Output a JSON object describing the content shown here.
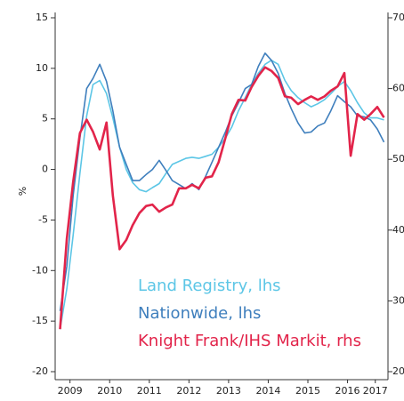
{
  "chart_data": {
    "type": "line",
    "y_label": "%",
    "x": [
      2009.25,
      2009.42,
      2009.58,
      2009.75,
      2009.92,
      2010.08,
      2010.25,
      2010.42,
      2010.58,
      2010.75,
      2010.92,
      2011.08,
      2011.25,
      2011.42,
      2011.58,
      2011.75,
      2011.92,
      2012.08,
      2012.25,
      2012.42,
      2012.58,
      2012.75,
      2012.92,
      2013.08,
      2013.25,
      2013.42,
      2013.58,
      2013.75,
      2013.92,
      2014.08,
      2014.25,
      2014.42,
      2014.58,
      2014.75,
      2014.92,
      2015.08,
      2015.25,
      2015.42,
      2015.58,
      2015.75,
      2015.92,
      2016.08,
      2016.25,
      2016.42,
      2016.58,
      2016.75,
      2016.92,
      2017.08,
      2017.25,
      2017.42
    ],
    "series": [
      {
        "name": "Land Registry, lhs",
        "color": "#5cc6e6",
        "values": [
          -15.8,
          -11.8,
          -6.5,
          -0.4,
          5.3,
          8.4,
          8.8,
          7.5,
          5.1,
          2.2,
          0.0,
          -1.3,
          -2.0,
          -2.2,
          -1.8,
          -1.4,
          -0.4,
          0.5,
          0.8,
          1.1,
          1.2,
          1.1,
          1.3,
          1.5,
          2.2,
          3.1,
          4.2,
          5.8,
          7.1,
          8.4,
          9.5,
          10.4,
          10.8,
          10.4,
          8.8,
          7.8,
          7.1,
          6.6,
          6.2,
          6.5,
          6.9,
          7.5,
          8.2,
          8.7,
          7.8,
          6.6,
          5.6,
          5.1,
          5.1,
          4.9
        ]
      },
      {
        "name": "Nationwide, lhs",
        "color": "#3f7fbd",
        "values": [
          -14.0,
          -9.6,
          -2.6,
          3.1,
          8.0,
          9.0,
          10.4,
          8.7,
          5.8,
          2.2,
          0.5,
          -1.1,
          -1.1,
          -0.5,
          0.0,
          0.9,
          -0.1,
          -1.1,
          -1.5,
          -1.9,
          -1.4,
          -2.0,
          -0.7,
          0.7,
          2.2,
          3.7,
          5.3,
          6.6,
          8.0,
          8.4,
          10.2,
          11.5,
          10.8,
          9.5,
          7.5,
          6.0,
          4.6,
          3.6,
          3.7,
          4.3,
          4.6,
          5.8,
          7.3,
          6.7,
          6.2,
          5.3,
          5.2,
          4.9,
          4.0,
          2.7
        ]
      },
      {
        "name": "Knight Frank/IHS Markit, rhs",
        "color": "#e2244a",
        "axis": "y2",
        "values": [
          26.0,
          38.8,
          46.8,
          53.7,
          55.6,
          53.9,
          51.4,
          55.2,
          44.9,
          37.3,
          38.6,
          40.7,
          42.4,
          43.4,
          43.6,
          42.6,
          43.2,
          43.6,
          45.9,
          45.9,
          46.4,
          45.9,
          47.4,
          47.6,
          49.6,
          53.0,
          56.4,
          58.4,
          58.3,
          60.2,
          61.8,
          63.0,
          62.5,
          61.5,
          58.9,
          58.7,
          57.8,
          58.4,
          58.9,
          58.4,
          58.9,
          59.7,
          60.3,
          62.2,
          50.5,
          56.4,
          55.6,
          56.4,
          57.4,
          55.9
        ]
      }
    ],
    "xlim": [
      2009.126,
      2017.52
    ],
    "xticks": [
      {
        "value": 2009.5,
        "label": "2009"
      },
      {
        "value": 2010.5,
        "label": "2010"
      },
      {
        "value": 2011.5,
        "label": "2011"
      },
      {
        "value": 2012.5,
        "label": "2012"
      },
      {
        "value": 2013.5,
        "label": "2013"
      },
      {
        "value": 2014.5,
        "label": "2014"
      },
      {
        "value": 2015.5,
        "label": "2015"
      },
      {
        "value": 2016.5,
        "label": "2016"
      },
      {
        "value": 2017.2,
        "label": "2017"
      }
    ],
    "ylim": [
      -20,
      15
    ],
    "yticks": [
      -20,
      -15,
      -10,
      -5,
      0,
      5,
      10,
      15
    ],
    "y2lim": [
      20,
      70
    ],
    "y2ticks": [
      20,
      30,
      40,
      50,
      60,
      70
    ]
  }
}
